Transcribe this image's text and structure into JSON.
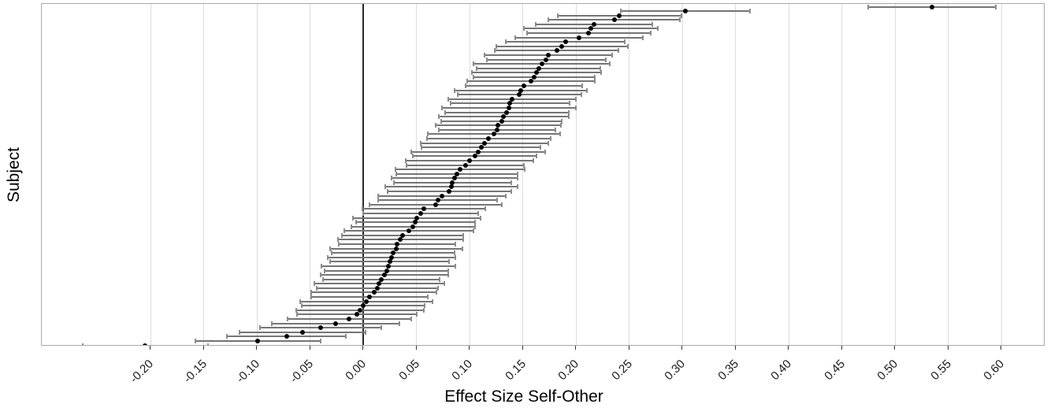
{
  "chart_data": {
    "type": "scatter",
    "subtype": "forest-caterpillar",
    "title": "",
    "xlabel": "Effect Size Self-Other",
    "ylabel": "Subject",
    "x_ticks": [
      -0.2,
      -0.15,
      -0.1,
      -0.05,
      0.0,
      0.05,
      0.1,
      0.15,
      0.2,
      0.25,
      0.3,
      0.35,
      0.4,
      0.45,
      0.5,
      0.55,
      0.6
    ],
    "x_tick_labels": [
      "-0.20",
      "-0.15",
      "-0.10",
      "-0.05",
      "0.00",
      "0.05",
      "0.10",
      "0.15",
      "0.20",
      "0.25",
      "0.30",
      "0.35",
      "0.40",
      "0.45",
      "0.50",
      "0.55",
      "0.60"
    ],
    "xlim": [
      -0.302,
      0.641
    ],
    "grid": true,
    "legend": false,
    "zero_reference_line": 0.0,
    "n_subjects": 78,
    "order": "sorted descending, top row = largest effect",
    "series": [
      {
        "name": "subject-effect-estimates",
        "values": [
          0.535,
          0.303,
          0.241,
          0.236,
          0.217,
          0.214,
          0.212,
          0.203,
          0.19,
          0.187,
          0.182,
          0.174,
          0.172,
          0.168,
          0.165,
          0.163,
          0.161,
          0.158,
          0.151,
          0.148,
          0.147,
          0.14,
          0.138,
          0.137,
          0.135,
          0.132,
          0.13,
          0.127,
          0.126,
          0.123,
          0.118,
          0.114,
          0.111,
          0.108,
          0.105,
          0.1,
          0.096,
          0.091,
          0.088,
          0.086,
          0.084,
          0.083,
          0.081,
          0.074,
          0.07,
          0.068,
          0.057,
          0.054,
          0.05,
          0.049,
          0.047,
          0.043,
          0.037,
          0.035,
          0.032,
          0.031,
          0.028,
          0.027,
          0.025,
          0.024,
          0.022,
          0.02,
          0.017,
          0.015,
          0.013,
          0.01,
          0.006,
          0.003,
          0.0,
          -0.003,
          -0.006,
          -0.013,
          -0.026,
          -0.04,
          -0.057,
          -0.072,
          -0.099,
          -0.205
        ],
        "ci_lower": [
          0.475,
          0.242,
          0.183,
          0.174,
          0.162,
          0.151,
          0.154,
          0.143,
          0.134,
          0.125,
          0.124,
          0.114,
          0.116,
          0.104,
          0.107,
          0.102,
          0.104,
          0.098,
          0.096,
          0.086,
          0.089,
          0.08,
          0.082,
          0.074,
          0.077,
          0.071,
          0.073,
          0.068,
          0.071,
          0.061,
          0.06,
          0.054,
          0.055,
          0.045,
          0.047,
          0.04,
          0.041,
          0.03,
          0.031,
          0.027,
          0.029,
          0.021,
          0.023,
          0.014,
          0.014,
          0.006,
          -0.001,
          0.0,
          -0.01,
          -0.007,
          -0.011,
          -0.018,
          -0.02,
          -0.024,
          -0.023,
          -0.031,
          -0.03,
          -0.033,
          -0.031,
          -0.039,
          -0.036,
          -0.04,
          -0.038,
          -0.046,
          -0.044,
          -0.049,
          -0.049,
          -0.059,
          -0.058,
          -0.063,
          -0.062,
          -0.071,
          -0.086,
          -0.097,
          -0.116,
          -0.128,
          -0.158,
          -0.264
        ],
        "ci_upper": [
          0.595,
          0.364,
          0.299,
          0.298,
          0.272,
          0.277,
          0.27,
          0.263,
          0.246,
          0.249,
          0.24,
          0.234,
          0.228,
          0.232,
          0.223,
          0.224,
          0.218,
          0.218,
          0.206,
          0.21,
          0.205,
          0.2,
          0.194,
          0.2,
          0.193,
          0.193,
          0.187,
          0.186,
          0.181,
          0.185,
          0.176,
          0.174,
          0.167,
          0.171,
          0.163,
          0.16,
          0.151,
          0.152,
          0.145,
          0.145,
          0.139,
          0.145,
          0.139,
          0.134,
          0.126,
          0.13,
          0.115,
          0.108,
          0.11,
          0.105,
          0.105,
          0.104,
          0.094,
          0.094,
          0.087,
          0.093,
          0.086,
          0.087,
          0.081,
          0.087,
          0.08,
          0.08,
          0.072,
          0.076,
          0.07,
          0.069,
          0.061,
          0.065,
          0.058,
          0.057,
          0.05,
          0.045,
          0.034,
          0.017,
          0.002,
          -0.016,
          -0.04,
          -0.146
        ]
      }
    ]
  },
  "style": {
    "point_color": "#000000",
    "error_bar_color": "#757575",
    "cap_color": "#8c8c8c",
    "grid_color": "#dcdcdc",
    "zero_line_color": "#2b2b2b",
    "panel_border_color": "#a9a9a9",
    "text_color": "#1a1a1a"
  }
}
